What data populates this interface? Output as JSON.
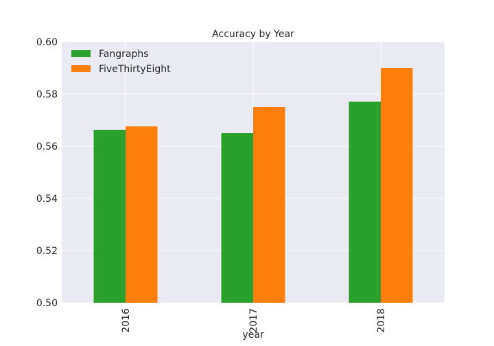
{
  "chart_data": {
    "type": "bar",
    "title": "Accuracy by Year",
    "xlabel": "year",
    "ylabel": "",
    "categories": [
      "2016",
      "2017",
      "2018"
    ],
    "series": [
      {
        "name": "Fangraphs",
        "color": "#2ca02c",
        "values": [
          0.5663,
          0.565,
          0.5771
        ]
      },
      {
        "name": "FiveThirtyEight",
        "color": "#ff7f0e",
        "values": [
          0.5676,
          0.575,
          0.59
        ]
      }
    ],
    "ylim": [
      0.5,
      0.6
    ],
    "yticks": [
      "0.50",
      "0.52",
      "0.54",
      "0.56",
      "0.58",
      "0.60"
    ],
    "grid": true,
    "legend_position": "top-left",
    "background": "#eaeaf2",
    "grid_color": "#ffffff"
  }
}
